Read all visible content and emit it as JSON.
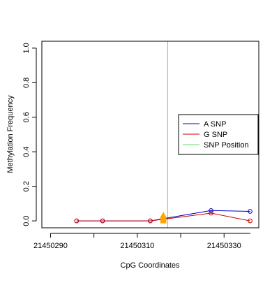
{
  "chart_data": {
    "type": "line",
    "title": "",
    "xlabel": "CpG Coordinates",
    "ylabel": "Methylation Frequency",
    "xlim": [
      21450288,
      21450338
    ],
    "ylim": [
      -0.04,
      1.04
    ],
    "x_ticks": [
      21450290,
      21450310,
      21450330
    ],
    "x_tick_labels": [
      "21450290",
      "21450310",
      "21450330"
    ],
    "y_ticks": [
      0.0,
      0.2,
      0.4,
      0.6,
      0.8,
      1.0
    ],
    "y_tick_labels": [
      "0.0",
      "0.2",
      "0.4",
      "0.6",
      "0.8",
      "1.0"
    ],
    "grid": false,
    "legend_position": "right",
    "series": [
      {
        "name": "A SNP",
        "color": "#0000CC",
        "x": [
          21450296,
          21450302,
          21450313,
          21450327,
          21450336
        ],
        "y": [
          0.0,
          0.0,
          0.0,
          0.06,
          0.055
        ]
      },
      {
        "name": "G SNP",
        "color": "#CC0000",
        "x": [
          21450296,
          21450302,
          21450313,
          21450327,
          21450336
        ],
        "y": [
          0.0,
          0.0,
          0.0,
          0.045,
          0.0
        ]
      },
      {
        "name": "SNP Position",
        "color": "#66DD66",
        "vline_x": 21450317
      }
    ],
    "markers": {
      "color": "#FFA500",
      "x": 21450316,
      "y": [
        0.0,
        0.008,
        0.016,
        0.024,
        0.032
      ]
    }
  }
}
